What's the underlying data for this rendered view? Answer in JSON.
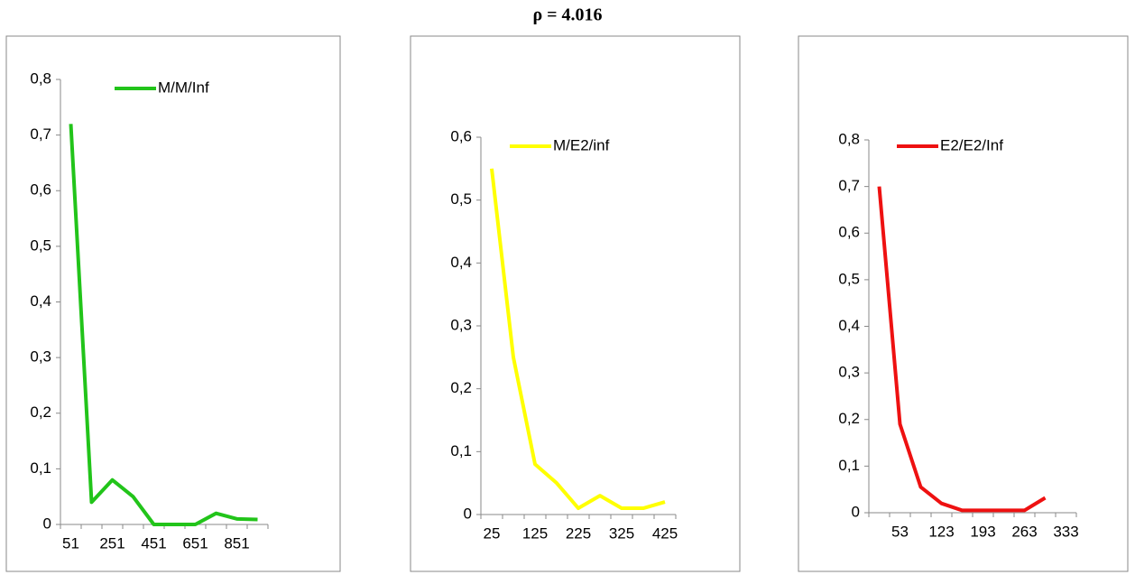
{
  "title": "ρ = 4.016",
  "chart_data": [
    {
      "type": "line",
      "categories": [
        51,
        null,
        251,
        null,
        451,
        null,
        651,
        null,
        851,
        null
      ],
      "series": [
        {
          "name": "M/M/Inf",
          "color": "#22c41a",
          "values": [
            0.72,
            0.04,
            0.08,
            0.05,
            0,
            0,
            0,
            0.02,
            0.01,
            0.009
          ]
        }
      ],
      "ylim": [
        0,
        0.8
      ],
      "yticks": [
        0,
        {
          "value": 0.1,
          "label": "0,1"
        },
        {
          "value": 0.2,
          "label": "0,2"
        },
        {
          "value": 0.3,
          "label": "0,3"
        },
        {
          "value": 0.4,
          "label": "0,4"
        },
        {
          "value": 0.5,
          "label": "0,5"
        },
        {
          "value": 0.6,
          "label": "0,6"
        },
        {
          "value": 0.7,
          "label": "0,7"
        },
        {
          "value": 0.8,
          "label": "0,8"
        }
      ]
    },
    {
      "type": "line",
      "categories": [
        25,
        null,
        125,
        null,
        225,
        null,
        325,
        null,
        425
      ],
      "series": [
        {
          "name": "M/E2/inf",
          "color": "#ffff00",
          "values": [
            0.55,
            0.25,
            0.08,
            0.05,
            0.01,
            0.03,
            0.01,
            0.01,
            0.02
          ]
        }
      ],
      "ylim": [
        0,
        0.6
      ],
      "yticks": [
        0,
        {
          "value": 0.1,
          "label": "0,1"
        },
        {
          "value": 0.2,
          "label": "0,2"
        },
        {
          "value": 0.3,
          "label": "0,3"
        },
        {
          "value": 0.4,
          "label": "0,4"
        },
        {
          "value": 0.5,
          "label": "0,5"
        },
        {
          "value": 0.6,
          "label": "0,6"
        }
      ]
    },
    {
      "type": "line",
      "categories": [
        null,
        53,
        null,
        123,
        null,
        193,
        null,
        263,
        null,
        333
      ],
      "series": [
        {
          "name": "E2/E2/Inf",
          "color": "#ee1111",
          "values": [
            0.7,
            0.19,
            0.055,
            0.02,
            0.005,
            0.005,
            0.005,
            0.005,
            0.032,
            null
          ]
        }
      ],
      "ylim": [
        0,
        0.8
      ],
      "yticks": [
        0,
        {
          "value": 0.1,
          "label": "0,1"
        },
        {
          "value": 0.2,
          "label": "0,2"
        },
        {
          "value": 0.3,
          "label": "0,3"
        },
        {
          "value": 0.4,
          "label": "0,4"
        },
        {
          "value": 0.5,
          "label": "0,5"
        },
        {
          "value": 0.6,
          "label": "0,6"
        },
        {
          "value": 0.7,
          "label": "0,7"
        },
        {
          "value": 0.8,
          "label": "0,8"
        }
      ]
    }
  ]
}
